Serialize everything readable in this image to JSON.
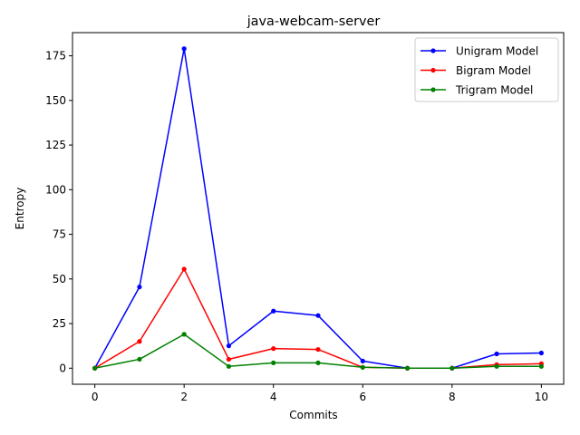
{
  "chart_data": {
    "type": "line",
    "title": "java-webcam-server",
    "xlabel": "Commits",
    "ylabel": "Entropy",
    "xlim": [
      -0.5,
      10.5
    ],
    "ylim": [
      -9,
      188
    ],
    "xticks": [
      0,
      2,
      4,
      6,
      8,
      10
    ],
    "yticks": [
      0,
      25,
      50,
      75,
      100,
      125,
      150,
      175
    ],
    "grid": false,
    "legend_position": "top-right",
    "x": [
      0,
      1,
      2,
      3,
      4,
      5,
      6,
      7,
      8,
      9,
      10
    ],
    "series": [
      {
        "name": "Unigram Model",
        "color": "#0000ff",
        "values": [
          0,
          45.5,
          179,
          12.5,
          32,
          29.5,
          4,
          0,
          0,
          8,
          8.5
        ]
      },
      {
        "name": "Bigram Model",
        "color": "#ff0000",
        "values": [
          0,
          15,
          55.5,
          5,
          11,
          10.5,
          0.5,
          0,
          0,
          2,
          2.5
        ]
      },
      {
        "name": "Trigram Model",
        "color": "#008000",
        "values": [
          0,
          5,
          19,
          1,
          3,
          3,
          0.5,
          0,
          0,
          1,
          1
        ]
      }
    ]
  }
}
